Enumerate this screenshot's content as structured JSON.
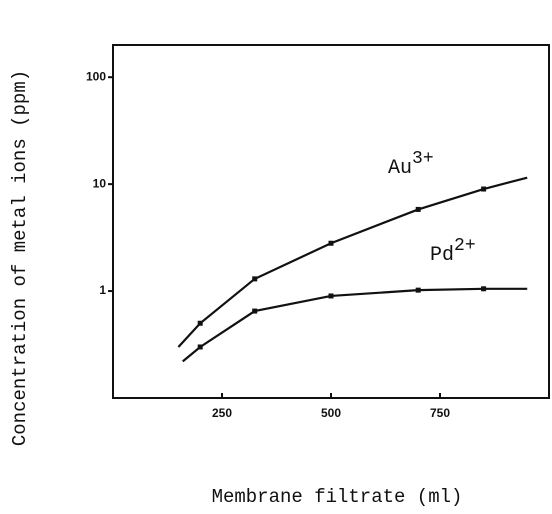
{
  "chart_data": {
    "type": "line",
    "xlabel": "Membrane filtrate (ml)",
    "ylabel": "Concentration of metal ions (ppm)",
    "log_y": true,
    "xlim": [
      0,
      1000
    ],
    "xticks": [
      250,
      500,
      750
    ],
    "ylim": [
      0.1,
      200
    ],
    "yticks": [
      1,
      10,
      100
    ],
    "series": [
      {
        "name": "Au",
        "sup": "3+",
        "color": "#111111",
        "x": [
          150,
          200,
          325,
          500,
          700,
          850,
          950
        ],
        "values": [
          0.3,
          0.5,
          1.3,
          2.8,
          5.8,
          9,
          11.5
        ]
      },
      {
        "name": "Pd",
        "sup": "2+",
        "color": "#111111",
        "x": [
          160,
          200,
          325,
          500,
          700,
          850,
          950
        ],
        "values": [
          0.22,
          0.3,
          0.65,
          0.9,
          1.02,
          1.05,
          1.05
        ]
      }
    ]
  }
}
